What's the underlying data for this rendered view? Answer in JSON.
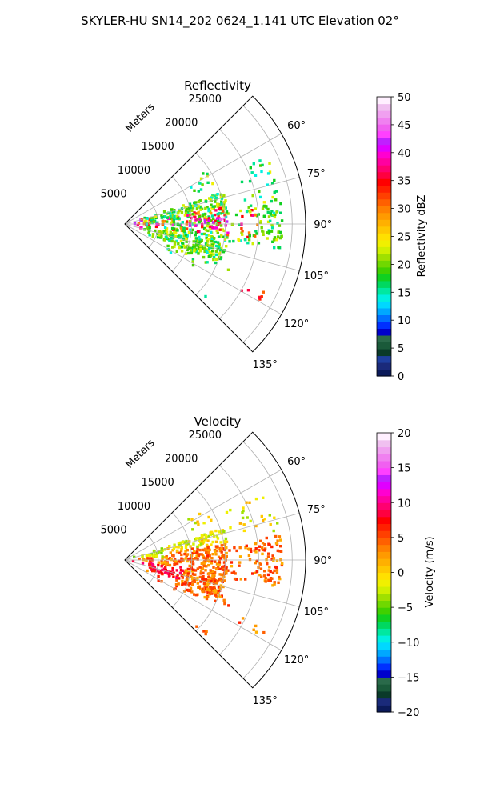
{
  "figure": {
    "suptitle": "SKYLER-HU  SN14_202  0624_1.141 UTC Elevation 02°"
  },
  "colors": {
    "reflectivity": [
      "#0b1a5a",
      "#1a2a7a",
      "#1e3fa0",
      "#0a3a2a",
      "#1a5a3a",
      "#2a6a4a",
      "#0000cc",
      "#0030ff",
      "#0070ff",
      "#00a8ff",
      "#00d8ff",
      "#00f0e0",
      "#00e8a0",
      "#00d860",
      "#10d020",
      "#40d000",
      "#70d800",
      "#a0e000",
      "#d0f000",
      "#f0f000",
      "#ffe000",
      "#ffc800",
      "#ffb000",
      "#ff9a00",
      "#ff8000",
      "#ff6000",
      "#ff4000",
      "#ff2000",
      "#ff0000",
      "#ff0040",
      "#ff0070",
      "#ff00a0",
      "#ff00d0",
      "#e000ff",
      "#c020ff",
      "#ff40ff",
      "#f060f0",
      "#f080f0",
      "#f0a0f0",
      "#f0c0f0",
      "#fff0ff"
    ],
    "velocity": [
      "#0b1a5a",
      "#1a2a7a",
      "#0a3a2a",
      "#1a5a3a",
      "#2a6a4a",
      "#0000cc",
      "#0030ff",
      "#0070ff",
      "#00a8ff",
      "#00d8ff",
      "#00f0e0",
      "#00e8a0",
      "#00d860",
      "#10d020",
      "#40d000",
      "#70d800",
      "#a0e000",
      "#d0f000",
      "#f0f000",
      "#ffe000",
      "#ffc800",
      "#ffb000",
      "#ff9a00",
      "#ff8000",
      "#ff6000",
      "#ff4000",
      "#ff2000",
      "#ff0000",
      "#ff0040",
      "#ff0070",
      "#ff00a0",
      "#ff00d0",
      "#e000ff",
      "#c020ff",
      "#ff40ff",
      "#f060f0",
      "#f080f0",
      "#f0a0f0",
      "#f0c0f0",
      "#fff0ff"
    ]
  },
  "chart_data": [
    {
      "type": "polar-sector",
      "title": "Reflectivity",
      "radial_label": "Meters",
      "r_ticks": [
        5000,
        10000,
        15000,
        20000,
        25000
      ],
      "r_tick_labels": [
        "5000",
        "10000",
        "15000",
        "20000",
        "25000"
      ],
      "theta_ticks": [
        60,
        75,
        90,
        105,
        120,
        135
      ],
      "theta_tick_labels": [
        "60°",
        "75°",
        "90°",
        "105°",
        "120°",
        "135°"
      ],
      "theta_range": [
        45,
        135
      ],
      "r_max": 27000,
      "colorbar": {
        "label": "Reflectivity dBZ",
        "range": [
          0,
          50
        ],
        "ticks": [
          0,
          5,
          10,
          15,
          20,
          25,
          30,
          35,
          40,
          45,
          50
        ],
        "tick_labels": [
          "0",
          "5",
          "10",
          "15",
          "20",
          "25",
          "30",
          "35",
          "40",
          "45",
          "50"
        ]
      }
    },
    {
      "type": "polar-sector",
      "title": "Velocity",
      "radial_label": "Meters",
      "r_ticks": [
        5000,
        10000,
        15000,
        20000,
        25000
      ],
      "r_tick_labels": [
        "5000",
        "10000",
        "15000",
        "20000",
        "25000"
      ],
      "theta_ticks": [
        60,
        75,
        90,
        105,
        120,
        135
      ],
      "theta_tick_labels": [
        "60°",
        "75°",
        "90°",
        "105°",
        "120°",
        "135°"
      ],
      "theta_range": [
        45,
        135
      ],
      "r_max": 27000,
      "colorbar": {
        "label": "Velocity (m/s)",
        "range": [
          -20,
          20
        ],
        "ticks": [
          -20,
          -15,
          -10,
          -5,
          0,
          5,
          10,
          15,
          20
        ],
        "tick_labels": [
          "−20",
          "−15",
          "−10",
          "−5",
          "0",
          "5",
          "10",
          "15",
          "20"
        ]
      }
    }
  ]
}
